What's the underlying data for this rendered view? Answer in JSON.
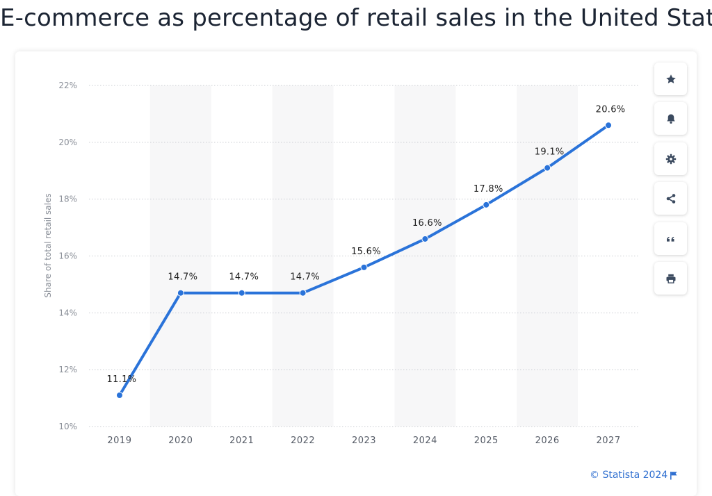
{
  "page": {
    "title": "E-commerce as percentage of retail sales in the United States",
    "credit": "© Statista 2024"
  },
  "toolbar": {
    "buttons": [
      {
        "icon": "star-icon"
      },
      {
        "icon": "bell-icon"
      },
      {
        "icon": "gear-icon"
      },
      {
        "icon": "share-icon"
      },
      {
        "icon": "quote-icon"
      },
      {
        "icon": "print-icon"
      }
    ],
    "icon_color": "#3b4a5f"
  },
  "chart_data": {
    "type": "line",
    "title": "E-commerce as percentage of retail sales in the United States",
    "xlabel": "",
    "ylabel": "Share of total retail sales",
    "categories": [
      "2019",
      "2020",
      "2021",
      "2022",
      "2023",
      "2024",
      "2025",
      "2026",
      "2027"
    ],
    "series": [
      {
        "values": [
          11.1,
          14.7,
          14.7,
          14.7,
          15.6,
          16.6,
          17.8,
          19.1,
          20.6
        ],
        "labels": [
          "11.1%",
          "14.7%",
          "14.7%",
          "14.7%",
          "15.6%",
          "16.6%",
          "17.8%",
          "19.1%",
          "20.6%"
        ],
        "color": "#2a73d9"
      }
    ],
    "ylim": [
      10,
      22
    ],
    "yticks": [
      10,
      12,
      14,
      16,
      18,
      20,
      22
    ],
    "ytick_labels": [
      "10%",
      "12%",
      "14%",
      "16%",
      "18%",
      "20%",
      "22%"
    ],
    "grid": true,
    "alternating_bands": true,
    "band_color": "#f7f7f8",
    "legend": "none"
  }
}
